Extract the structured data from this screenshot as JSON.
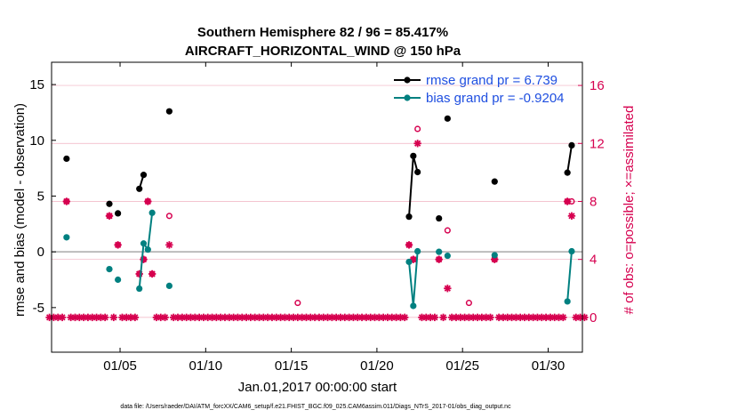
{
  "chart_data": {
    "type": "line",
    "title": "Southern Hemisphere 82 / 96 = 85.417%",
    "subtitle": "AIRCRAFT_HORIZONTAL_WIND @ 150 hPa",
    "xlabel": "Jan.01,2017 00:00:00 start",
    "ylabel": "rmse and bias (model - observation)",
    "y2label": "# of obs: o=possible; ×=assimilated",
    "xlim": [
      1,
      32
    ],
    "ylim": [
      -9,
      17
    ],
    "y2lim": [
      -2.4,
      17.6
    ],
    "x_ticks": [
      5,
      10,
      15,
      20,
      25,
      30
    ],
    "x_tick_labels": [
      "01/05",
      "01/10",
      "01/15",
      "01/20",
      "01/25",
      "01/30"
    ],
    "y_ticks": [
      -5,
      0,
      5,
      10,
      15
    ],
    "y_tick_labels": [
      "-5",
      "0",
      "5",
      "10",
      "15"
    ],
    "y2_ticks": [
      0,
      4,
      8,
      12,
      16
    ],
    "y2_tick_labels": [
      "0",
      "4",
      "8",
      "12",
      "16"
    ],
    "grid": true,
    "legend_position": "top-right",
    "colors": {
      "rmse": "#000000",
      "bias": "#008080",
      "obs": "#d6004f",
      "zero_line": "#aaaaaa",
      "grid": "#f0b0c0",
      "legend_text": "#1f4fe0"
    },
    "footer": "data file: /Users/raeder/DAI/ATM_forcXX/CAM6_setup/f.e21.FHIST_BGC.f09_025.CAM6assim.011/Diags_NTrS_2017-01/obs_diag_output.nc",
    "series": [
      {
        "name": "rmse grand pr = 6.739",
        "axis": "left",
        "points": [
          [
            1.875,
            8.35
          ],
          [
            4.375,
            4.3
          ],
          [
            4.875,
            3.45
          ],
          [
            6.125,
            5.65
          ],
          [
            6.375,
            6.9
          ],
          [
            7.875,
            12.6
          ],
          [
            21.875,
            3.15
          ],
          [
            22.125,
            8.6
          ],
          [
            22.375,
            7.15
          ],
          [
            23.625,
            3.0
          ],
          [
            24.125,
            11.95
          ],
          [
            26.875,
            6.3
          ],
          [
            31.125,
            7.1
          ],
          [
            31.375,
            9.55
          ]
        ]
      },
      {
        "name": "bias grand pr = -0.9204",
        "axis": "left",
        "points": [
          [
            1.875,
            1.3
          ],
          [
            4.375,
            -1.55
          ],
          [
            4.875,
            -2.5
          ],
          [
            6.125,
            -3.3
          ],
          [
            6.375,
            0.75
          ],
          [
            6.625,
            0.2
          ],
          [
            6.875,
            3.5
          ],
          [
            7.875,
            -3.05
          ],
          [
            21.875,
            -0.9
          ],
          [
            22.125,
            -4.85
          ],
          [
            22.375,
            0.05
          ],
          [
            23.625,
            0.0
          ],
          [
            24.125,
            -0.35
          ],
          [
            26.875,
            -0.3
          ],
          [
            31.125,
            -4.45
          ],
          [
            31.375,
            0.05
          ]
        ]
      }
    ],
    "obs_possible": [
      [
        1.875,
        8
      ],
      [
        4.375,
        7
      ],
      [
        4.875,
        5
      ],
      [
        6.125,
        3
      ],
      [
        6.375,
        4
      ],
      [
        6.625,
        8
      ],
      [
        6.875,
        3
      ],
      [
        7.875,
        7
      ],
      [
        15.375,
        1
      ],
      [
        21.875,
        5
      ],
      [
        22.125,
        4
      ],
      [
        22.375,
        13
      ],
      [
        23.625,
        4
      ],
      [
        24.125,
        6
      ],
      [
        25.375,
        1
      ],
      [
        26.875,
        4
      ],
      [
        31.125,
        8
      ],
      [
        31.375,
        8
      ]
    ],
    "obs_assimilated": [
      [
        1.875,
        8
      ],
      [
        4.375,
        7
      ],
      [
        4.875,
        5
      ],
      [
        6.125,
        3
      ],
      [
        6.375,
        4
      ],
      [
        6.625,
        8
      ],
      [
        6.875,
        3
      ],
      [
        7.875,
        5
      ],
      [
        21.875,
        5
      ],
      [
        22.125,
        4
      ],
      [
        22.375,
        12
      ],
      [
        23.625,
        4
      ],
      [
        24.125,
        2
      ],
      [
        26.875,
        4
      ],
      [
        31.125,
        8
      ],
      [
        31.375,
        7
      ]
    ],
    "obs_zero_x_start": 0.875,
    "obs_zero_x_end": 32.125,
    "obs_zero_x_step": 0.25
  }
}
